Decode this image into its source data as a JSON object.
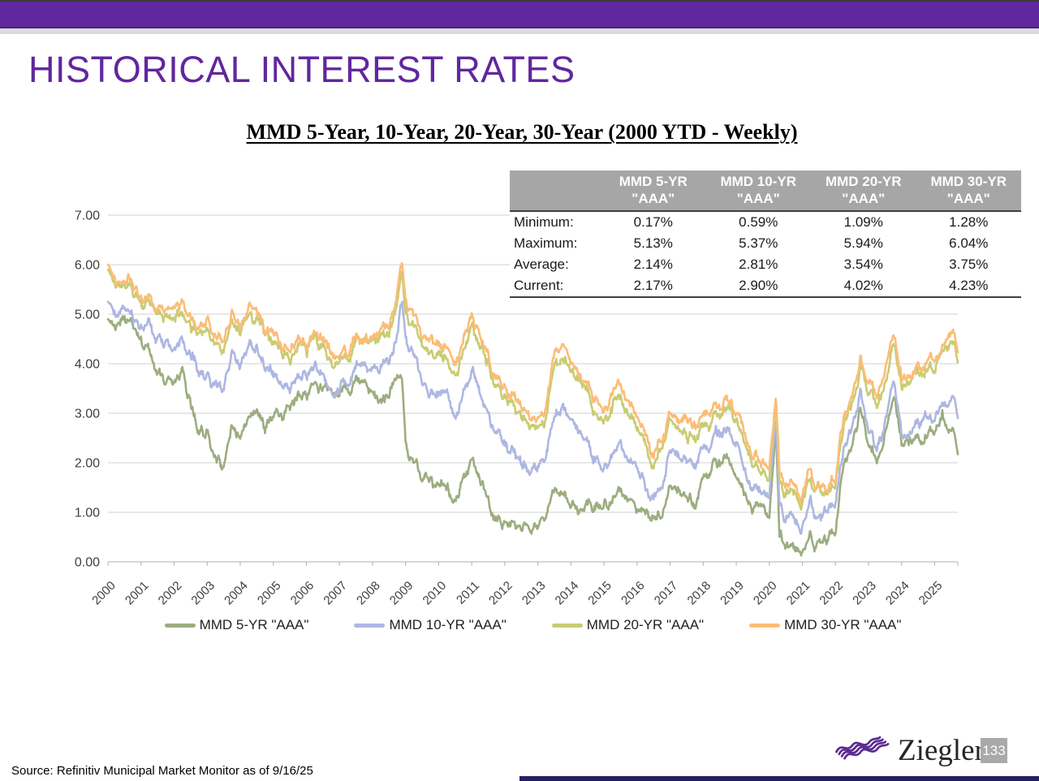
{
  "slide": {
    "title": "HISTORICAL INTEREST RATES",
    "subtitle": "MMD 5-Year, 10-Year, 20-Year, 30-Year (2000 YTD - Weekly)",
    "source": "Source: Refinitiv Municipal Market Monitor as of 9/16/25",
    "logo_text": "Ziegler",
    "page_number": "133",
    "colors": {
      "accent_purple": "#61279e",
      "table_header_bg": "#a6a6a6",
      "bottom_bar": "#262262",
      "logo_purple": "#5c2d91"
    }
  },
  "stats_table": {
    "columns": [
      {
        "l1": "MMD 5-YR",
        "l2": "\"AAA\""
      },
      {
        "l1": "MMD 10-YR",
        "l2": "\"AAA\""
      },
      {
        "l1": "MMD 20-YR",
        "l2": "\"AAA\""
      },
      {
        "l1": "MMD 30-YR",
        "l2": "\"AAA\""
      }
    ],
    "rows": [
      {
        "label": "Minimum:",
        "values": [
          "0.17%",
          "0.59%",
          "1.09%",
          "1.28%"
        ]
      },
      {
        "label": "Maximum:",
        "values": [
          "5.13%",
          "5.37%",
          "5.94%",
          "6.04%"
        ]
      },
      {
        "label": "Average:",
        "values": [
          "2.14%",
          "2.81%",
          "3.54%",
          "3.75%"
        ]
      },
      {
        "label": "Current:",
        "values": [
          "2.17%",
          "2.90%",
          "4.02%",
          "4.23%"
        ]
      }
    ]
  },
  "chart_data": {
    "type": "line",
    "title": "MMD 5-Year, 10-Year, 20-Year, 30-Year (2000 YTD - Weekly)",
    "frequency": "weekly",
    "ylim": [
      0,
      7
    ],
    "ytick_step": 1,
    "y_tick_labels": [
      "0.00",
      "1.00",
      "2.00",
      "3.00",
      "4.00",
      "5.00",
      "6.00",
      "7.00"
    ],
    "xticks": [
      2000,
      2001,
      2002,
      2003,
      2004,
      2005,
      2006,
      2007,
      2008,
      2009,
      2010,
      2011,
      2012,
      2013,
      2014,
      2015,
      2016,
      2017,
      2018,
      2019,
      2020,
      2021,
      2022,
      2023,
      2024,
      2025
    ],
    "x_tick_labels": [
      "2000",
      "2001",
      "2002",
      "2003",
      "2004",
      "2005",
      "2006",
      "2007",
      "2008",
      "2009",
      "2010",
      "2011",
      "2012",
      "2013",
      "2014",
      "2015",
      "2016",
      "2017",
      "2018",
      "2019",
      "2020",
      "2021",
      "2022",
      "2023",
      "2024",
      "2025"
    ],
    "grid": true,
    "legend_position": "bottom",
    "style": {
      "grid_color": "#d9d9d9",
      "axis_color": "#bfbfbf",
      "tick_label_color": "#3f3f3f"
    },
    "x": [
      2000,
      2000.25,
      2000.5,
      2000.75,
      2001,
      2001.25,
      2001.5,
      2001.75,
      2002,
      2002.25,
      2002.5,
      2002.75,
      2003,
      2003.25,
      2003.5,
      2003.75,
      2004,
      2004.25,
      2004.5,
      2004.75,
      2005,
      2005.25,
      2005.5,
      2005.75,
      2006,
      2006.25,
      2006.5,
      2006.75,
      2007,
      2007.25,
      2007.5,
      2007.75,
      2008,
      2008.25,
      2008.5,
      2008.75,
      2008.9,
      2009,
      2009.25,
      2009.5,
      2009.75,
      2010,
      2010.25,
      2010.5,
      2010.75,
      2011,
      2011.25,
      2011.5,
      2011.75,
      2012,
      2012.25,
      2012.5,
      2012.75,
      2013,
      2013.25,
      2013.5,
      2013.75,
      2014,
      2014.25,
      2014.5,
      2014.75,
      2015,
      2015.25,
      2015.5,
      2015.75,
      2016,
      2016.25,
      2016.5,
      2016.75,
      2017,
      2017.25,
      2017.5,
      2017.75,
      2018,
      2018.25,
      2018.5,
      2018.75,
      2019,
      2019.25,
      2019.5,
      2019.75,
      2020,
      2020.2,
      2020.3,
      2020.5,
      2020.75,
      2021,
      2021.25,
      2021.5,
      2021.75,
      2022,
      2022.25,
      2022.5,
      2022.75,
      2023,
      2023.25,
      2023.5,
      2023.75,
      2024,
      2024.25,
      2024.5,
      2024.75,
      2025,
      2025.25,
      2025.5,
      2025.7
    ],
    "series": [
      {
        "name": "MMD 5-YR \"AAA\"",
        "color": "#9cad7f",
        "values": [
          4.9,
          4.78,
          4.85,
          4.7,
          4.3,
          4.2,
          3.9,
          3.65,
          3.7,
          3.9,
          3.2,
          2.8,
          2.6,
          2.1,
          1.78,
          2.75,
          2.55,
          2.9,
          3.05,
          2.75,
          2.9,
          3.05,
          3.15,
          3.35,
          3.45,
          3.6,
          3.55,
          3.4,
          3.42,
          3.55,
          3.7,
          3.45,
          3.3,
          3.35,
          3.4,
          3.8,
          3.55,
          2.3,
          1.85,
          1.6,
          1.5,
          1.55,
          1.45,
          1.2,
          1.8,
          1.95,
          1.65,
          1.35,
          0.95,
          0.78,
          0.72,
          0.62,
          0.72,
          0.8,
          0.95,
          1.35,
          1.4,
          1.25,
          1.1,
          1.15,
          1.2,
          1.15,
          1.25,
          1.4,
          1.3,
          1.15,
          1.0,
          0.85,
          1.05,
          1.55,
          1.45,
          1.25,
          1.2,
          1.65,
          1.85,
          1.95,
          2.2,
          1.8,
          1.45,
          1.15,
          1.05,
          1.0,
          2.6,
          0.6,
          0.35,
          0.3,
          0.2,
          0.45,
          0.4,
          0.5,
          0.6,
          1.9,
          2.4,
          3.05,
          2.3,
          2.2,
          2.6,
          3.3,
          2.45,
          2.55,
          2.5,
          2.6,
          2.6,
          2.95,
          2.8,
          2.17
        ]
      },
      {
        "name": "MMD 10-YR \"AAA\"",
        "color": "#aeb7e2",
        "values": [
          5.25,
          5.05,
          5.1,
          4.95,
          4.55,
          4.7,
          4.55,
          4.4,
          4.45,
          4.6,
          4.1,
          3.95,
          3.9,
          3.6,
          3.45,
          4.2,
          3.95,
          4.25,
          4.3,
          3.95,
          3.75,
          3.7,
          3.6,
          3.8,
          3.72,
          3.9,
          3.8,
          3.55,
          3.5,
          3.6,
          3.95,
          3.8,
          3.85,
          4.05,
          4.0,
          4.6,
          5.08,
          4.3,
          3.95,
          3.55,
          3.3,
          3.4,
          3.3,
          2.9,
          3.45,
          3.75,
          3.4,
          3.1,
          2.65,
          2.35,
          2.2,
          1.95,
          1.8,
          2.0,
          2.2,
          2.95,
          3.2,
          2.9,
          2.6,
          2.35,
          2.15,
          1.95,
          2.15,
          2.3,
          2.1,
          1.9,
          1.6,
          1.35,
          1.7,
          2.3,
          2.2,
          2.0,
          1.95,
          2.3,
          2.45,
          2.5,
          2.75,
          2.3,
          1.9,
          1.55,
          1.4,
          1.35,
          2.85,
          1.15,
          0.9,
          0.85,
          0.7,
          1.05,
          0.95,
          1.05,
          1.2,
          2.25,
          2.7,
          3.4,
          2.6,
          2.45,
          2.85,
          3.6,
          2.6,
          2.75,
          2.8,
          2.9,
          2.9,
          3.25,
          3.45,
          2.9
        ]
      },
      {
        "name": "MMD 20-YR \"AAA\"",
        "color": "#c9cc72",
        "values": [
          5.9,
          5.58,
          5.6,
          5.48,
          5.1,
          5.2,
          5.08,
          4.95,
          5.02,
          5.12,
          4.82,
          4.75,
          4.7,
          4.42,
          4.25,
          4.88,
          4.62,
          4.88,
          4.9,
          4.58,
          4.4,
          4.3,
          4.2,
          4.38,
          4.3,
          4.45,
          4.35,
          4.1,
          4.02,
          4.12,
          4.48,
          4.32,
          4.42,
          4.62,
          4.58,
          5.25,
          5.68,
          4.92,
          4.58,
          4.32,
          4.08,
          4.18,
          4.08,
          3.7,
          4.28,
          4.7,
          4.35,
          4.08,
          3.58,
          3.28,
          3.1,
          2.8,
          2.62,
          2.85,
          3.1,
          3.95,
          4.2,
          3.92,
          3.62,
          3.38,
          3.15,
          2.82,
          3.08,
          3.25,
          3.05,
          2.82,
          2.42,
          1.88,
          2.32,
          2.82,
          2.75,
          2.6,
          2.5,
          2.75,
          2.85,
          2.9,
          3.2,
          2.82,
          2.42,
          2.05,
          1.85,
          1.82,
          3.12,
          1.62,
          1.4,
          1.38,
          1.22,
          1.58,
          1.48,
          1.35,
          1.5,
          2.68,
          3.15,
          3.92,
          3.38,
          3.28,
          3.68,
          4.38,
          3.52,
          3.68,
          3.78,
          3.88,
          3.85,
          4.25,
          4.5,
          4.02
        ]
      },
      {
        "name": "MMD 30-YR \"AAA\"",
        "color": "#fbbd77",
        "values": [
          6.0,
          5.7,
          5.72,
          5.6,
          5.25,
          5.35,
          5.22,
          5.1,
          5.16,
          5.26,
          4.98,
          4.92,
          4.88,
          4.6,
          4.42,
          5.02,
          4.8,
          5.04,
          5.06,
          4.76,
          4.58,
          4.48,
          4.38,
          4.56,
          4.46,
          4.6,
          4.5,
          4.24,
          4.16,
          4.26,
          4.6,
          4.46,
          4.56,
          4.76,
          4.7,
          5.4,
          5.9,
          5.12,
          4.8,
          4.52,
          4.28,
          4.4,
          4.28,
          3.92,
          4.48,
          4.9,
          4.56,
          4.28,
          3.8,
          3.52,
          3.32,
          3.02,
          2.86,
          3.08,
          3.32,
          4.15,
          4.4,
          4.12,
          3.82,
          3.58,
          3.38,
          3.02,
          3.3,
          3.46,
          3.26,
          3.02,
          2.62,
          2.08,
          2.52,
          3.02,
          2.95,
          2.8,
          2.7,
          2.95,
          3.05,
          3.1,
          3.4,
          3.02,
          2.62,
          2.25,
          2.05,
          2.02,
          3.32,
          1.82,
          1.58,
          1.55,
          1.4,
          1.75,
          1.65,
          1.52,
          1.65,
          2.85,
          3.32,
          4.08,
          3.55,
          3.45,
          3.85,
          4.52,
          3.7,
          3.85,
          3.95,
          4.05,
          4.02,
          4.42,
          4.65,
          4.23
        ]
      }
    ]
  }
}
